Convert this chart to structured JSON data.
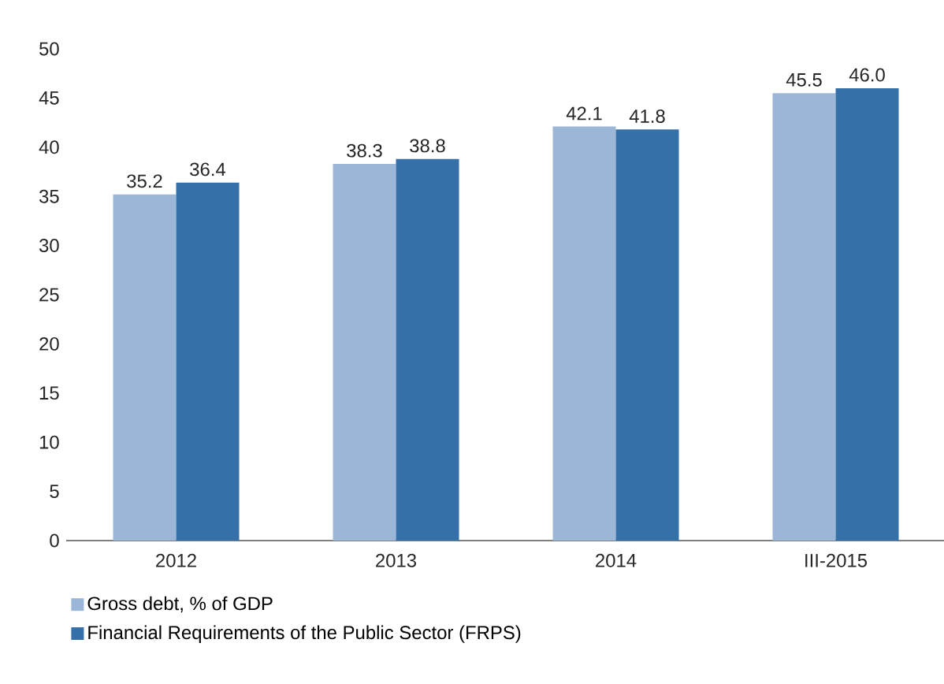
{
  "chart_data": {
    "type": "bar",
    "categories": [
      "2012",
      "2013",
      "2014",
      "III-2015"
    ],
    "series": [
      {
        "name": "Gross debt, % of GDP",
        "color": "#9bb6d6",
        "values": [
          35.2,
          38.3,
          42.1,
          45.5
        ],
        "value_labels": [
          "35.2",
          "38.3",
          "42.1",
          "45.5"
        ]
      },
      {
        "name": "Financial Requirements of the Public Sector (FRPS)",
        "color": "#3570a9",
        "values": [
          36.4,
          38.8,
          41.8,
          46.0
        ],
        "value_labels": [
          "36.4",
          "38.8",
          "41.8",
          "46.0"
        ]
      }
    ],
    "ylim": [
      0,
      50
    ],
    "yticks": [
      0,
      5,
      10,
      15,
      20,
      25,
      30,
      35,
      40,
      45,
      50
    ],
    "legend": "bottom left"
  }
}
